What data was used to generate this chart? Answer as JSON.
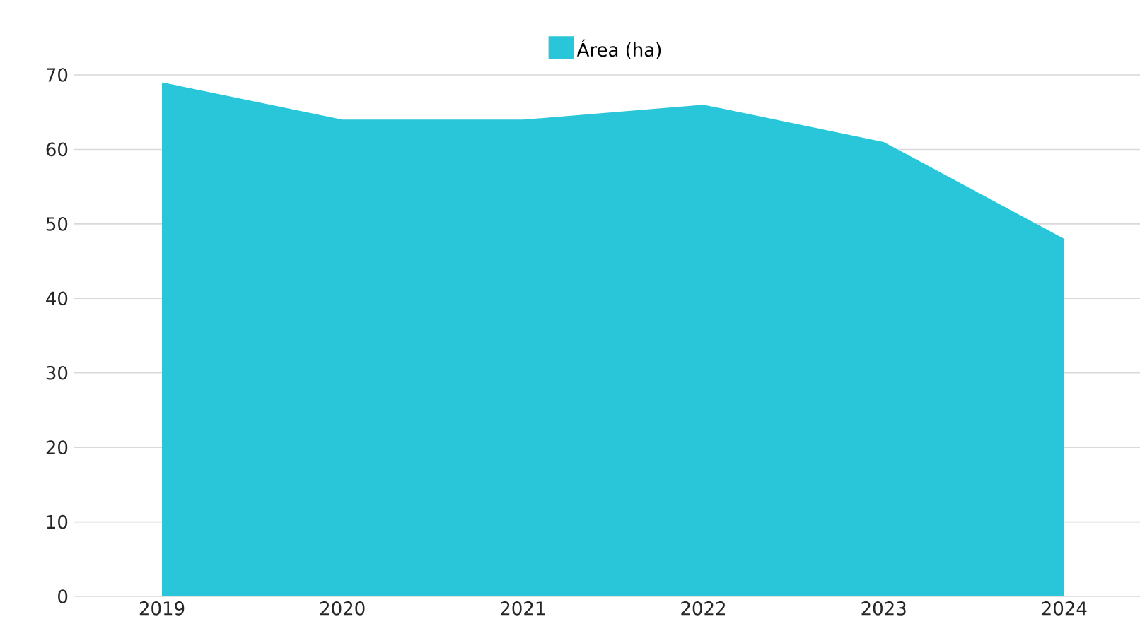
{
  "chart_data": {
    "type": "area",
    "categories": [
      "2019",
      "2020",
      "2021",
      "2022",
      "2023",
      "2024"
    ],
    "series": [
      {
        "name": "Área (ha)",
        "color": "#29c6da",
        "values": [
          69,
          64,
          64,
          66,
          61,
          48
        ]
      }
    ],
    "ylim": [
      0,
      70
    ],
    "yticks": [
      0,
      10,
      20,
      30,
      40,
      50,
      60,
      70
    ],
    "grid": "y",
    "legend": "top"
  }
}
